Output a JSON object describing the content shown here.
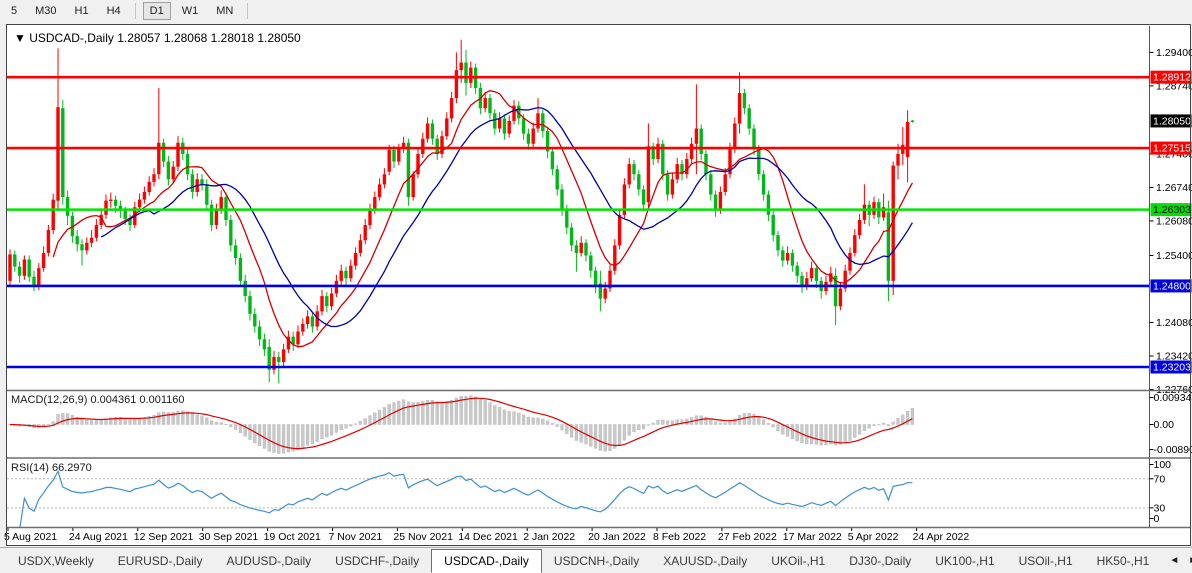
{
  "toolbar": {
    "group1": [
      "5",
      "M30",
      "H1",
      "H4"
    ],
    "group2": [
      "D1",
      "W1",
      "MN"
    ],
    "active": "D1"
  },
  "chart": {
    "menu_icon": "▼",
    "symbol": "USDCAD-,Daily",
    "ohlc_display": "1.28057 1.28068 1.28018 1.28050"
  },
  "chart_data": {
    "type": "candlestick",
    "title": "USDCAD-,Daily",
    "last_candle": {
      "open": "1.28057",
      "high": "1.28068",
      "low": "1.28018",
      "close": "1.28050"
    },
    "bull_color": "#FF0000",
    "bear_color": "#00B818",
    "y_range": {
      "top": 1.2992,
      "bottom": 1.2275
    },
    "y_ticks": [
      {
        "label": "1.29400",
        "price": 1.294
      },
      {
        "label": "1.28740",
        "price": 1.2874
      },
      {
        "label": "1.27400",
        "price": 1.274
      },
      {
        "label": "1.26740",
        "price": 1.2674
      },
      {
        "label": "1.26080",
        "price": 1.2608
      },
      {
        "label": "1.25400",
        "price": 1.254
      },
      {
        "label": "1.24080",
        "price": 1.2408
      },
      {
        "label": "1.23420",
        "price": 1.2342
      },
      {
        "label": "1.22760",
        "price": 1.2276
      }
    ],
    "hlines": [
      {
        "label": "1.28912",
        "price": 1.28912,
        "color": "#FF0000",
        "label_bg": "#FF0000",
        "label_fg": "#FFFFFF"
      },
      {
        "label": "1.27515",
        "price": 1.27515,
        "color": "#FF0000",
        "label_bg": "#FF0000",
        "label_fg": "#FFFFFF"
      },
      {
        "label": "1.26303",
        "price": 1.26303,
        "color": "#00E400",
        "label_bg": "#00DF00",
        "label_fg": "#000000"
      },
      {
        "label": "1.24800",
        "price": 1.248,
        "color": "#0000E6",
        "label_bg": "#0000E0",
        "label_fg": "#FFFFFF"
      },
      {
        "label": "1.23203",
        "price": 1.23203,
        "color": "#0000E6",
        "label_bg": "#0000E0",
        "label_fg": "#FFFFFF"
      }
    ],
    "current_price": {
      "label": "1.28050",
      "price": 1.2805,
      "label_bg": "#000000",
      "label_fg": "#FFFFFF"
    },
    "x_labels": [
      "5 Aug 2021",
      "24 Aug 2021",
      "12 Sep 2021",
      "30 Sep 2021",
      "19 Oct 2021",
      "7 Nov 2021",
      "25 Nov 2021",
      "14 Dec 2021",
      "2 Jan 2022",
      "20 Jan 2022",
      "8 Feb 2022",
      "27 Feb 2022",
      "17 Mar 2022",
      "5 Apr 2022",
      "24 Apr 2022"
    ],
    "overlays": [
      {
        "name": "ma-fast",
        "method": "sma",
        "period": 10,
        "color": "#D40000"
      },
      {
        "name": "ma-slow",
        "method": "sma",
        "period": 20,
        "color": "#0000A8"
      }
    ],
    "macd": {
      "label": "MACD(12,26,9)",
      "values_display": "0.004361 0.001160",
      "params": [
        12,
        26,
        9
      ],
      "histogram_color": "#C9C9C9",
      "signal_color": "#E00000",
      "scale_labels": {
        "top": "0.009345",
        "mid": "0.00",
        "bottom": "-0.008902"
      }
    },
    "rsi": {
      "label": "RSI(14)",
      "value_display": "66.2970",
      "period": 14,
      "line_color": "#3E8FD0",
      "levels": [
        70,
        30
      ],
      "scale_labels": [
        "100",
        "70",
        "30",
        "0"
      ]
    },
    "candles": [
      [
        1.249,
        1.2552,
        1.2478,
        1.2542
      ],
      [
        1.2542,
        1.255,
        1.2508,
        1.2518
      ],
      [
        1.2518,
        1.2528,
        1.2486,
        1.25
      ],
      [
        1.25,
        1.254,
        1.2492,
        1.2532
      ],
      [
        1.2532,
        1.254,
        1.2488,
        1.2498
      ],
      [
        1.2498,
        1.251,
        1.247,
        1.248
      ],
      [
        1.248,
        1.2525,
        1.2472,
        1.2515
      ],
      [
        1.2515,
        1.2558,
        1.2508,
        1.2545
      ],
      [
        1.2545,
        1.26,
        1.2538,
        1.259
      ],
      [
        1.259,
        1.2662,
        1.2582,
        1.265
      ],
      [
        1.2648,
        1.2948,
        1.2632,
        1.2832
      ],
      [
        1.283,
        1.2846,
        1.264,
        1.2655
      ],
      [
        1.2655,
        1.2668,
        1.26,
        1.2618
      ],
      [
        1.2618,
        1.2626,
        1.2565,
        1.2578
      ],
      [
        1.2578,
        1.259,
        1.2548,
        1.2562
      ],
      [
        1.2562,
        1.2572,
        1.252,
        1.255
      ],
      [
        1.255,
        1.2576,
        1.2542,
        1.2565
      ],
      [
        1.2565,
        1.259,
        1.2556,
        1.2575
      ],
      [
        1.2575,
        1.2612,
        1.2568,
        1.26
      ],
      [
        1.26,
        1.2632,
        1.2592,
        1.262
      ],
      [
        1.262,
        1.266,
        1.2612,
        1.2648
      ],
      [
        1.2648,
        1.2664,
        1.2634,
        1.265
      ],
      [
        1.265,
        1.2658,
        1.2624,
        1.2638
      ],
      [
        1.2638,
        1.2648,
        1.2614,
        1.2628
      ],
      [
        1.2628,
        1.2636,
        1.26,
        1.2612
      ],
      [
        1.2612,
        1.2622,
        1.2588,
        1.26
      ],
      [
        1.26,
        1.2646,
        1.2594,
        1.2635
      ],
      [
        1.2635,
        1.2662,
        1.2626,
        1.265
      ],
      [
        1.265,
        1.2676,
        1.2642,
        1.2665
      ],
      [
        1.2665,
        1.2696,
        1.2658,
        1.2685
      ],
      [
        1.2685,
        1.2712,
        1.2676,
        1.27
      ],
      [
        1.27,
        1.287,
        1.269,
        1.2762
      ],
      [
        1.2762,
        1.277,
        1.2714,
        1.2725
      ],
      [
        1.2725,
        1.2736,
        1.2678,
        1.269
      ],
      [
        1.269,
        1.2726,
        1.2682,
        1.2715
      ],
      [
        1.2715,
        1.2775,
        1.2706,
        1.2762
      ],
      [
        1.2762,
        1.2772,
        1.2728,
        1.274
      ],
      [
        1.274,
        1.275,
        1.2688,
        1.27
      ],
      [
        1.27,
        1.271,
        1.2652,
        1.2665
      ],
      [
        1.2665,
        1.2702,
        1.2656,
        1.269
      ],
      [
        1.269,
        1.27,
        1.2668,
        1.268
      ],
      [
        1.268,
        1.269,
        1.2628,
        1.264
      ],
      [
        1.264,
        1.265,
        1.2588,
        1.26
      ],
      [
        1.26,
        1.2642,
        1.2592,
        1.263
      ],
      [
        1.263,
        1.2668,
        1.2622,
        1.2655
      ],
      [
        1.2655,
        1.2664,
        1.2598,
        1.261
      ],
      [
        1.261,
        1.262,
        1.2548,
        1.256
      ],
      [
        1.256,
        1.2572,
        1.2522,
        1.2535
      ],
      [
        1.2535,
        1.2544,
        1.2478,
        1.249
      ],
      [
        1.249,
        1.2502,
        1.2448,
        1.246
      ],
      [
        1.246,
        1.247,
        1.2412,
        1.2425
      ],
      [
        1.2425,
        1.2436,
        1.2388,
        1.24
      ],
      [
        1.24,
        1.2412,
        1.2362,
        1.2375
      ],
      [
        1.2375,
        1.2386,
        1.2342,
        1.2355
      ],
      [
        1.236,
        1.2375,
        1.229,
        1.2315
      ],
      [
        1.2315,
        1.2352,
        1.2306,
        1.234
      ],
      [
        1.234,
        1.235,
        1.2288,
        1.233
      ],
      [
        1.233,
        1.2366,
        1.2322,
        1.2355
      ],
      [
        1.2355,
        1.2392,
        1.2348,
        1.238
      ],
      [
        1.238,
        1.239,
        1.2352,
        1.2365
      ],
      [
        1.2365,
        1.2402,
        1.2358,
        1.239
      ],
      [
        1.239,
        1.2416,
        1.2382,
        1.2405
      ],
      [
        1.2405,
        1.2432,
        1.2396,
        1.242
      ],
      [
        1.242,
        1.2428,
        1.2388,
        1.24
      ],
      [
        1.24,
        1.2442,
        1.2392,
        1.243
      ],
      [
        1.243,
        1.2472,
        1.2422,
        1.246
      ],
      [
        1.246,
        1.2468,
        1.2428,
        1.244
      ],
      [
        1.244,
        1.2476,
        1.2432,
        1.2465
      ],
      [
        1.2465,
        1.2502,
        1.2458,
        1.249
      ],
      [
        1.249,
        1.2522,
        1.2482,
        1.251
      ],
      [
        1.251,
        1.2518,
        1.2482,
        1.2495
      ],
      [
        1.2495,
        1.2532,
        1.2488,
        1.252
      ],
      [
        1.252,
        1.2556,
        1.2512,
        1.2545
      ],
      [
        1.2545,
        1.2582,
        1.2538,
        1.257
      ],
      [
        1.257,
        1.2612,
        1.2562,
        1.26
      ],
      [
        1.26,
        1.2642,
        1.2592,
        1.263
      ],
      [
        1.263,
        1.2666,
        1.2622,
        1.2655
      ],
      [
        1.2655,
        1.2692,
        1.2648,
        1.268
      ],
      [
        1.268,
        1.2712,
        1.2672,
        1.27
      ],
      [
        1.2705,
        1.2758,
        1.2698,
        1.2748
      ],
      [
        1.2748,
        1.2756,
        1.2712,
        1.2725
      ],
      [
        1.2725,
        1.276,
        1.2718,
        1.275
      ],
      [
        1.275,
        1.2774,
        1.2742,
        1.2762
      ],
      [
        1.2762,
        1.277,
        1.2638,
        1.2655
      ],
      [
        1.2655,
        1.2706,
        1.2648,
        1.27
      ],
      [
        1.27,
        1.2752,
        1.2692,
        1.274
      ],
      [
        1.274,
        1.2782,
        1.2732,
        1.277
      ],
      [
        1.277,
        1.2812,
        1.2762,
        1.28
      ],
      [
        1.28,
        1.2808,
        1.2758,
        1.277
      ],
      [
        1.277,
        1.2778,
        1.2728,
        1.274
      ],
      [
        1.274,
        1.2786,
        1.2732,
        1.2775
      ],
      [
        1.2775,
        1.2822,
        1.2768,
        1.281
      ],
      [
        1.281,
        1.2862,
        1.2802,
        1.285
      ],
      [
        1.285,
        1.294,
        1.284,
        1.2905
      ],
      [
        1.2905,
        1.2965,
        1.288,
        1.292
      ],
      [
        1.292,
        1.2945,
        1.2855,
        1.288
      ],
      [
        1.288,
        1.2922,
        1.287,
        1.291
      ],
      [
        1.291,
        1.2918,
        1.2858,
        1.287
      ],
      [
        1.287,
        1.288,
        1.2818,
        1.283
      ],
      [
        1.283,
        1.2862,
        1.2822,
        1.285
      ],
      [
        1.285,
        1.2858,
        1.2808,
        1.282
      ],
      [
        1.282,
        1.2828,
        1.2778,
        1.279
      ],
      [
        1.279,
        1.2822,
        1.2782,
        1.281
      ],
      [
        1.281,
        1.2818,
        1.2768,
        1.278
      ],
      [
        1.278,
        1.2816,
        1.2772,
        1.2805
      ],
      [
        1.2805,
        1.2846,
        1.2798,
        1.2835
      ],
      [
        1.2835,
        1.2844,
        1.2798,
        1.281
      ],
      [
        1.281,
        1.2818,
        1.2768,
        1.278
      ],
      [
        1.278,
        1.279,
        1.2748,
        1.276
      ],
      [
        1.276,
        1.2802,
        1.2752,
        1.279
      ],
      [
        1.279,
        1.285,
        1.2782,
        1.282
      ],
      [
        1.282,
        1.2828,
        1.2772,
        1.2785
      ],
      [
        1.2785,
        1.2794,
        1.2732,
        1.2745
      ],
      [
        1.2745,
        1.2754,
        1.2698,
        1.271
      ],
      [
        1.271,
        1.2718,
        1.2658,
        1.267
      ],
      [
        1.267,
        1.268,
        1.2618,
        1.263
      ],
      [
        1.263,
        1.264,
        1.2582,
        1.2595
      ],
      [
        1.2595,
        1.2604,
        1.2548,
        1.256
      ],
      [
        1.256,
        1.257,
        1.2508,
        1.2545
      ],
      [
        1.2545,
        1.2578,
        1.2538,
        1.2565
      ],
      [
        1.2565,
        1.2572,
        1.2528,
        1.254
      ],
      [
        1.254,
        1.2548,
        1.2496,
        1.251
      ],
      [
        1.251,
        1.2518,
        1.2466,
        1.248
      ],
      [
        1.2485,
        1.251,
        1.243,
        1.2455
      ],
      [
        1.2455,
        1.2488,
        1.2446,
        1.2475
      ],
      [
        1.2475,
        1.2522,
        1.2468,
        1.251
      ],
      [
        1.251,
        1.2572,
        1.2502,
        1.256
      ],
      [
        1.256,
        1.2632,
        1.2552,
        1.262
      ],
      [
        1.262,
        1.2692,
        1.2612,
        1.268
      ],
      [
        1.268,
        1.2732,
        1.2672,
        1.272
      ],
      [
        1.272,
        1.2728,
        1.2688,
        1.27
      ],
      [
        1.27,
        1.2708,
        1.2658,
        1.267
      ],
      [
        1.267,
        1.2678,
        1.2628,
        1.264
      ],
      [
        1.2645,
        1.28,
        1.2635,
        1.2755
      ],
      [
        1.2755,
        1.2762,
        1.2718,
        1.273
      ],
      [
        1.273,
        1.2772,
        1.2722,
        1.276
      ],
      [
        1.276,
        1.2768,
        1.2688,
        1.27
      ],
      [
        1.27,
        1.2708,
        1.2648,
        1.266
      ],
      [
        1.266,
        1.2702,
        1.2652,
        1.269
      ],
      [
        1.269,
        1.2732,
        1.2682,
        1.272
      ],
      [
        1.272,
        1.2728,
        1.2688,
        1.27
      ],
      [
        1.27,
        1.2742,
        1.2692,
        1.273
      ],
      [
        1.273,
        1.2772,
        1.2722,
        1.276
      ],
      [
        1.276,
        1.2877,
        1.27,
        1.279
      ],
      [
        1.279,
        1.2798,
        1.2728,
        1.274
      ],
      [
        1.274,
        1.2748,
        1.2688,
        1.27
      ],
      [
        1.27,
        1.2708,
        1.2648,
        1.266
      ],
      [
        1.266,
        1.2668,
        1.2616,
        1.263
      ],
      [
        1.263,
        1.2676,
        1.2622,
        1.2665
      ],
      [
        1.2665,
        1.2712,
        1.2658,
        1.27
      ],
      [
        1.27,
        1.2762,
        1.2692,
        1.275
      ],
      [
        1.275,
        1.2812,
        1.2742,
        1.28
      ],
      [
        1.28,
        1.2901,
        1.278,
        1.286
      ],
      [
        1.286,
        1.2868,
        1.2818,
        1.283
      ],
      [
        1.283,
        1.2838,
        1.2778,
        1.279
      ],
      [
        1.279,
        1.2798,
        1.2738,
        1.275
      ],
      [
        1.275,
        1.2758,
        1.2688,
        1.27
      ],
      [
        1.27,
        1.2708,
        1.2648,
        1.266
      ],
      [
        1.266,
        1.2668,
        1.2608,
        1.262
      ],
      [
        1.262,
        1.2628,
        1.2568,
        1.258
      ],
      [
        1.258,
        1.2588,
        1.2538,
        1.255
      ],
      [
        1.255,
        1.2558,
        1.2518,
        1.253
      ],
      [
        1.253,
        1.2558,
        1.2522,
        1.2545
      ],
      [
        1.2545,
        1.2552,
        1.2508,
        1.252
      ],
      [
        1.252,
        1.2528,
        1.2486,
        1.25
      ],
      [
        1.25,
        1.2508,
        1.2466,
        1.248
      ],
      [
        1.248,
        1.2508,
        1.2472,
        1.2495
      ],
      [
        1.2495,
        1.2528,
        1.2488,
        1.2515
      ],
      [
        1.2515,
        1.2522,
        1.2476,
        1.249
      ],
      [
        1.249,
        1.2498,
        1.2455,
        1.247
      ],
      [
        1.247,
        1.25,
        1.2462,
        1.2488
      ],
      [
        1.2488,
        1.2518,
        1.248,
        1.2505
      ],
      [
        1.25,
        1.2515,
        1.2403,
        1.244
      ],
      [
        1.244,
        1.2488,
        1.2432,
        1.2475
      ],
      [
        1.2475,
        1.2522,
        1.2468,
        1.251
      ],
      [
        1.251,
        1.2556,
        1.2502,
        1.2545
      ],
      [
        1.2545,
        1.2592,
        1.2538,
        1.258
      ],
      [
        1.258,
        1.2622,
        1.2572,
        1.261
      ],
      [
        1.261,
        1.268,
        1.2602,
        1.264
      ],
      [
        1.264,
        1.2648,
        1.2598,
        1.262
      ],
      [
        1.262,
        1.2656,
        1.2612,
        1.2645
      ],
      [
        1.2645,
        1.2652,
        1.2602,
        1.2615
      ],
      [
        1.2615,
        1.2662,
        1.2608,
        1.2635
      ],
      [
        1.2625,
        1.2648,
        1.245,
        1.249
      ],
      [
        1.249,
        1.2725,
        1.2462,
        1.2717
      ],
      [
        1.2717,
        1.276,
        1.269,
        1.274
      ],
      [
        1.274,
        1.2793,
        1.2718,
        1.2758
      ],
      [
        1.2734,
        1.2826,
        1.2684,
        1.2803
      ],
      [
        1.28057,
        1.28068,
        1.28018,
        1.2805
      ]
    ]
  },
  "tabs": {
    "items": [
      "USDX,Weekly",
      "EURUSD-,Daily",
      "AUDUSD-,Daily",
      "USDCHF-,Daily",
      "USDCAD-,Daily",
      "USDCNH-,Daily",
      "XAUUSD-,Daily",
      "UKOil-,H1",
      "DJ30-,Daily",
      "UK100-,H1",
      "USOil-,H1",
      "HK50-,H1"
    ],
    "active": "USDCAD-,Daily",
    "scroll_left_icon": "◄",
    "scroll_right_icon": "►"
  }
}
